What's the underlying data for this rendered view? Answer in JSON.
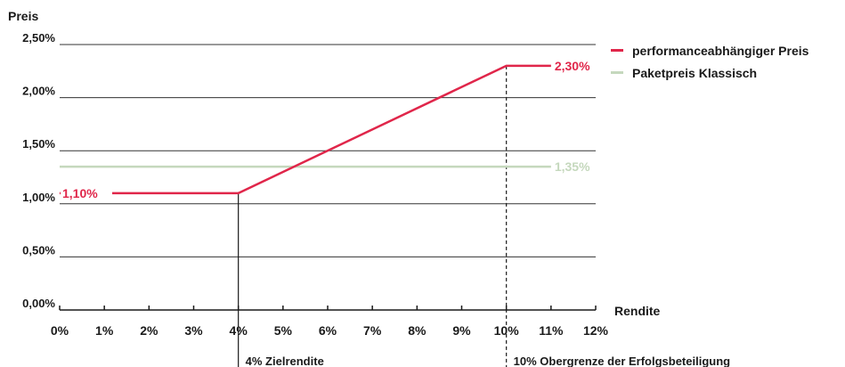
{
  "chart_data": {
    "type": "line",
    "ylabel": "Preis",
    "xlabel": "Rendite",
    "x_ticks": [
      "0%",
      "1%",
      "2%",
      "3%",
      "4%",
      "5%",
      "6%",
      "7%",
      "8%",
      "9%",
      "10%",
      "11%",
      "12%"
    ],
    "y_ticks": [
      "0,00%",
      "0,50%",
      "1,00%",
      "1,50%",
      "2,00%",
      "2,50%"
    ],
    "xlim": [
      0,
      12
    ],
    "ylim": [
      0,
      2.5
    ],
    "grid": "horizontal",
    "legend_position": "top-right",
    "series": [
      {
        "name": "performanceabhängiger Preis",
        "color": "#e0264a",
        "x": [
          0,
          4,
          10,
          11
        ],
        "y": [
          1.1,
          1.1,
          2.3,
          2.3
        ],
        "labels": [
          {
            "text": "1,10%",
            "x": 0,
            "y": 1.1,
            "position": "left-inside"
          },
          {
            "text": "2,30%",
            "x": 11,
            "y": 2.3,
            "position": "right"
          }
        ]
      },
      {
        "name": "Paketpreis Klassisch",
        "color": "#c5d8bd",
        "x": [
          0,
          11
        ],
        "y": [
          1.35,
          1.35
        ],
        "labels": [
          {
            "text": "1,35%",
            "x": 11,
            "y": 1.35,
            "position": "right"
          }
        ]
      }
    ],
    "annotations": [
      {
        "text": "4% Zielrendite",
        "x": 4,
        "style": "solid"
      },
      {
        "text": "10% Obergrenze der Erfolgsbeteiligung",
        "x": 10,
        "style": "dashed"
      }
    ]
  }
}
